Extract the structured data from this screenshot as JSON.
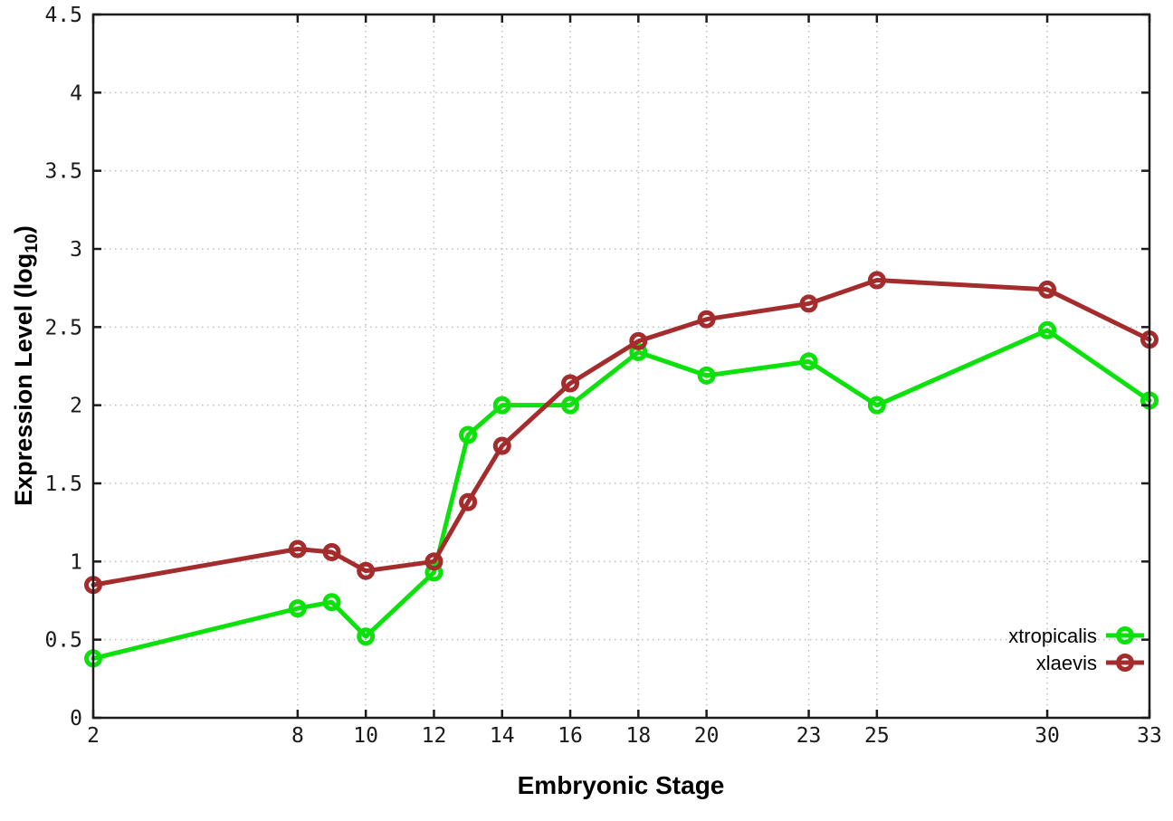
{
  "chart_data": {
    "type": "line",
    "title": "",
    "xlabel": "Embryonic Stage",
    "ylabel_prefix": "Expression Level (log",
    "ylabel_sub": "10",
    "ylabel_suffix": ")",
    "xlim": [
      2,
      33
    ],
    "ylim": [
      0,
      4.5
    ],
    "x_ticks": [
      2,
      8,
      10,
      12,
      14,
      16,
      18,
      20,
      23,
      25,
      30,
      33
    ],
    "y_ticks": [
      0,
      0.5,
      1,
      1.5,
      2,
      2.5,
      3,
      3.5,
      4,
      4.5
    ],
    "y_tick_labels": [
      "0",
      "0.5",
      "1",
      "1.5",
      "2",
      "2.5",
      "3",
      "3.5",
      "4",
      "4.5"
    ],
    "grid": true,
    "legend_position": "bottom-right",
    "x": [
      2,
      8,
      9,
      10,
      12,
      13,
      14,
      16,
      18,
      20,
      23,
      25,
      30,
      33
    ],
    "series": [
      {
        "name": "xtropicalis",
        "color": "#0ce10c",
        "values": [
          0.38,
          0.7,
          0.74,
          0.52,
          0.93,
          1.81,
          2.0,
          2.0,
          2.34,
          2.19,
          2.28,
          2.0,
          2.48,
          2.03
        ]
      },
      {
        "name": "xlaevis",
        "color": "#a52c2c",
        "values": [
          0.85,
          1.08,
          1.06,
          0.94,
          1.0,
          1.38,
          1.74,
          2.14,
          2.41,
          2.55,
          2.65,
          2.8,
          2.74,
          2.42
        ]
      }
    ]
  },
  "colors": {
    "grid": "#bdbdbd",
    "axis": "#1c1c1c",
    "text": "#000000",
    "background": "#ffffff"
  }
}
